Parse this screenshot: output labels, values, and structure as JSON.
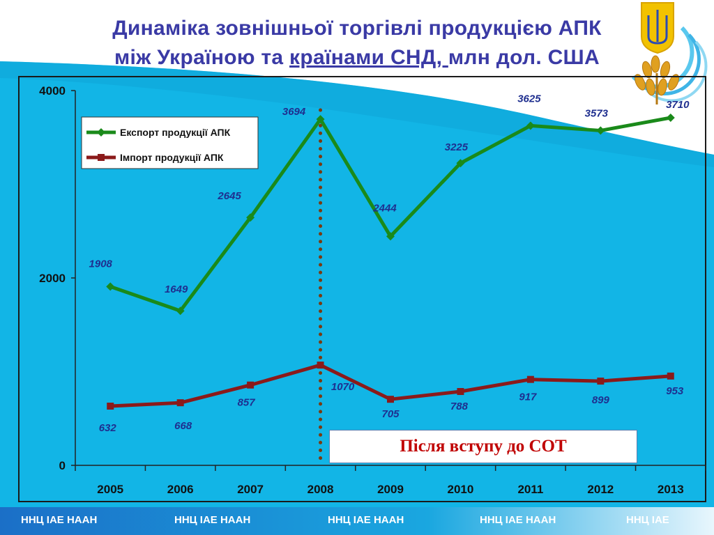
{
  "title": {
    "line1": "Динаміка зовнішньої торгівлі продукцією АПК",
    "line2_before": "між Україною та ",
    "line2_underlined": "країнами СНД, ",
    "line2_after": "млн дол. США"
  },
  "note": "Після вступу до СОТ",
  "footer": [
    "ННЦ ІАЕ  НААН",
    "ННЦ ІАЕ  НААН",
    "ННЦ ІАЕ  НААН",
    "ННЦ ІАЕ  НААН",
    "ННЦ ІАЕ"
  ],
  "colors": {
    "export": "#1a8a1a",
    "import": "#8b1a1a",
    "label": "#1f2f8f",
    "background": "#0fb8e8",
    "marker_line": "#7a3a10"
  },
  "chart_data": {
    "type": "line",
    "categories": [
      "2005",
      "2006",
      "2007",
      "2008",
      "2009",
      "2010",
      "2011",
      "2012",
      "2013"
    ],
    "series": [
      {
        "name": "Експорт продукції АПК",
        "values": [
          1908,
          1649,
          2645,
          3694,
          2444,
          3225,
          3625,
          3573,
          3710
        ]
      },
      {
        "name": "Імпорт продукції АПК",
        "values": [
          632,
          668,
          857,
          1070,
          705,
          788,
          917,
          899,
          953
        ]
      }
    ],
    "ylim": [
      0,
      4000
    ],
    "yticks": [
      "0",
      "2000",
      "4000"
    ],
    "legend_position": "top-left",
    "grid": false,
    "vertical_marker_category": "2008"
  }
}
